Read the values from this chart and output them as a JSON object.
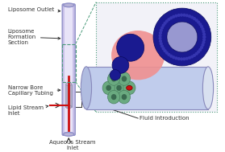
{
  "bg_color": "#ffffff",
  "capillary_outer_color": "#c8c0e8",
  "capillary_inner_color": "#e8e4f8",
  "capillary_edge_color": "#9090c8",
  "red_stream_color": "#cc1010",
  "label_color": "#333333",
  "arrow_color": "#333333",
  "dashed_color": "#4a9a7a",
  "inset_bg": "#f2f2f8",
  "pink_color": "#f09090",
  "dark_blue": "#1a1a90",
  "mid_blue": "#4040a0",
  "light_blue_cyl": "#c0ccec",
  "light_blue_cyl2": "#d8e0f0",
  "cyl_edge": "#8888bb",
  "green_tube": "#6aaa80",
  "green_tube_dark": "#3a6a50",
  "green_tube_edge": "#4a8060",
  "liposome_ring": "#1a1a90",
  "liposome_inner": "#8888cc",
  "labels": {
    "liposome_outlet": "Liposome Outlet",
    "liposome_formation": "Liposome\nFormation\nSection",
    "narrow_bore": "Narrow Bore\nCapillary Tubing",
    "lipid_stream": "Lipid Stream\nInlet",
    "aqueous_stream": "Aqueous Stream\nInlet",
    "fluid_introduction": "Fluid Introduction"
  },
  "figsize": [
    2.79,
    1.89
  ],
  "dpi": 100
}
